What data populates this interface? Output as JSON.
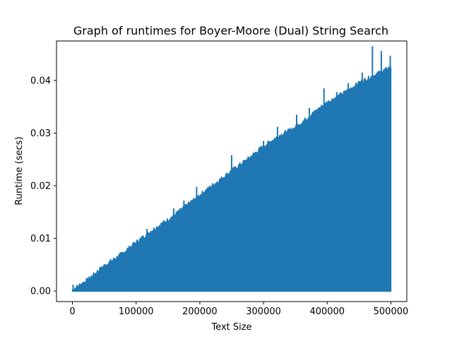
{
  "chart_data": {
    "type": "line",
    "title": "Graph of runtimes for Boyer-Moore (Dual) String Search",
    "xlabel": "Text Size",
    "ylabel": "Runtime (secs)",
    "xlim": [
      -25000,
      525000
    ],
    "ylim": [
      -0.002,
      0.0475
    ],
    "xticks": [
      0,
      100000,
      200000,
      300000,
      400000,
      500000
    ],
    "xtick_labels": [
      "0",
      "100000",
      "200000",
      "300000",
      "400000",
      "500000"
    ],
    "yticks": [
      0.0,
      0.01,
      0.02,
      0.03,
      0.04
    ],
    "ytick_labels": [
      "0.00",
      "0.01",
      "0.02",
      "0.03",
      "0.04"
    ],
    "grid": false,
    "legend": false,
    "series": [
      {
        "color": "#1f77b4",
        "x_range": [
          0,
          500000
        ],
        "min_runtime": 0.0,
        "upper_envelope": {
          "x": [
            0,
            25000,
            50000,
            75000,
            100000,
            125000,
            150000,
            175000,
            200000,
            225000,
            250000,
            275000,
            300000,
            325000,
            350000,
            375000,
            400000,
            425000,
            450000,
            475000,
            500000
          ],
          "y": [
            0.0002,
            0.0022,
            0.0048,
            0.0068,
            0.0092,
            0.0115,
            0.0135,
            0.0158,
            0.0182,
            0.0205,
            0.0228,
            0.025,
            0.0275,
            0.0295,
            0.031,
            0.0335,
            0.0358,
            0.0375,
            0.0395,
            0.041,
            0.0425
          ]
        },
        "spikes": [
          {
            "x": 1000,
            "y": 0.0012
          },
          {
            "x": 117000,
            "y": 0.0118
          },
          {
            "x": 159000,
            "y": 0.0157
          },
          {
            "x": 175000,
            "y": 0.0172
          },
          {
            "x": 195000,
            "y": 0.0198
          },
          {
            "x": 250000,
            "y": 0.0258
          },
          {
            "x": 300000,
            "y": 0.0285
          },
          {
            "x": 322000,
            "y": 0.0312
          },
          {
            "x": 352000,
            "y": 0.0335
          },
          {
            "x": 372000,
            "y": 0.0348
          },
          {
            "x": 395000,
            "y": 0.0385
          },
          {
            "x": 415000,
            "y": 0.0378
          },
          {
            "x": 433000,
            "y": 0.0395
          },
          {
            "x": 455000,
            "y": 0.0415
          },
          {
            "x": 471000,
            "y": 0.0465
          },
          {
            "x": 485000,
            "y": 0.0456
          },
          {
            "x": 499000,
            "y": 0.0447
          }
        ]
      }
    ]
  }
}
